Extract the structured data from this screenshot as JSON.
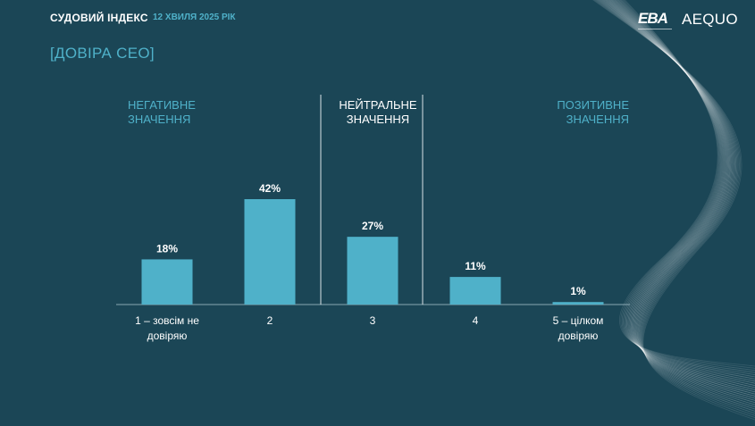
{
  "header": {
    "title": "СУДОВИЙ ІНДЕКС",
    "date": "12 ХВИЛЯ 2025 РІК",
    "logo_left": "EBA",
    "logo_right": "AEQUO"
  },
  "section_title": "[ДОВІРА CEO]",
  "groups": {
    "negative": [
      "НЕГАТИВНЕ",
      "ЗНАЧЕННЯ"
    ],
    "neutral": [
      "НЕЙТРАЛЬНЕ",
      "ЗНАЧЕННЯ"
    ],
    "positive": [
      "ПОЗИТИВНЕ",
      "ЗНАЧЕННЯ"
    ]
  },
  "colors": {
    "background": "#1b4656",
    "bar": "#4fb1c9",
    "accent_text": "#4fb1c9",
    "text": "#ffffff"
  },
  "chart_data": {
    "type": "bar",
    "categories": [
      [
        "1 – зовсім не",
        "довіряю"
      ],
      [
        "2"
      ],
      [
        "3"
      ],
      [
        "4"
      ],
      [
        "5 – цілком",
        "довіряю"
      ]
    ],
    "values": [
      18,
      42,
      27,
      11,
      1
    ],
    "value_labels": [
      "18%",
      "42%",
      "27%",
      "11%",
      "1%"
    ],
    "unit": "%",
    "ylim": [
      0,
      42
    ],
    "grid": false,
    "legend": "none"
  }
}
